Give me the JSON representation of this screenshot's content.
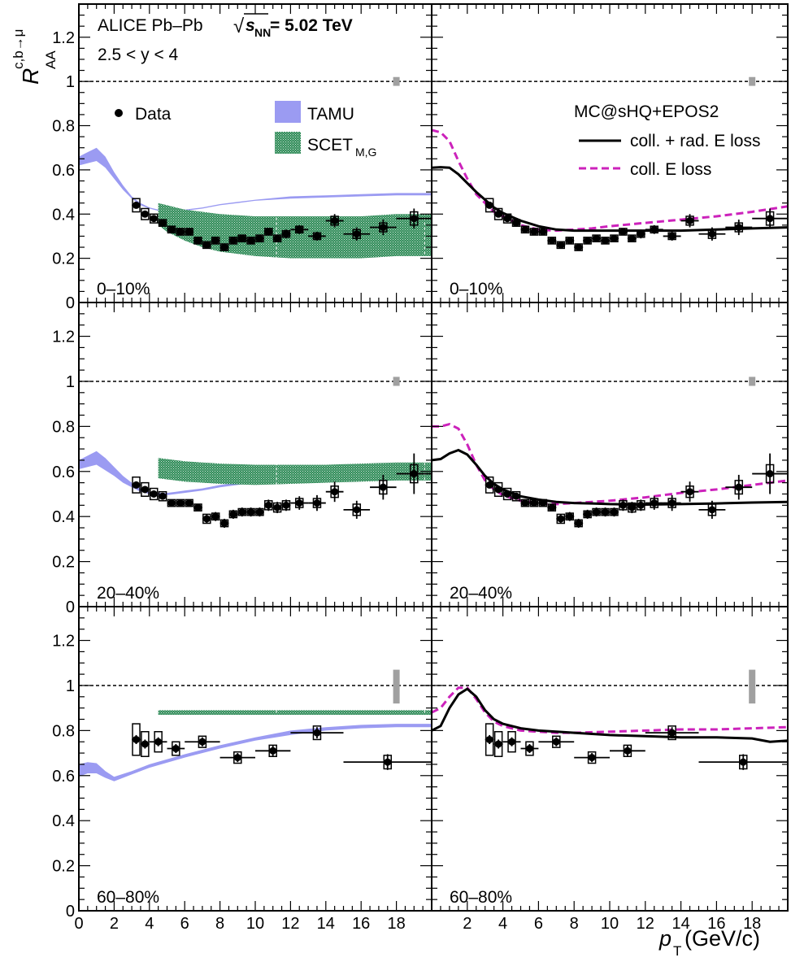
{
  "figure": {
    "experiment_label": "ALICE Pb–Pb",
    "energy_sqrt": "√",
    "energy_s": "s",
    "energy_sub": "NN",
    "energy_value": " = 5.02 TeV",
    "rapidity": "2.5 < y < 4",
    "ylabel_main": "R",
    "ylabel_sub": "AA",
    "ylabel_sup": "c,b→μ",
    "xlabel_main": "p",
    "xlabel_sub": "T",
    "xlabel_unit": " (GeV/c)"
  },
  "legend": {
    "data": "Data",
    "tamu": "TAMU",
    "scet": "SCET",
    "scet_sub": "M,G",
    "mc_title": "MC@sHQ+EPOS2",
    "coll_rad": "coll. + rad. E loss",
    "coll": "coll. E loss"
  },
  "colors": {
    "tamu": "#9b9bf2",
    "scet": "#2f8a58",
    "mc_coll_rad": "#000000",
    "mc_coll": "#cc22bb",
    "norm_unc": "#a0a0a0",
    "data": "#000000"
  },
  "chart_data": {
    "type": "scatter",
    "layout": "3 rows (centrality) × 2 columns (model comparison)",
    "x_range": [
      0,
      20
    ],
    "y_range": [
      0,
      1.35
    ],
    "x_ticks": [
      0,
      2,
      4,
      6,
      8,
      10,
      12,
      14,
      16,
      18
    ],
    "y_ticks": [
      0,
      0.2,
      0.4,
      0.6,
      0.8,
      1,
      1.2
    ],
    "reference_line": 1,
    "columns": [
      "TAMU, SCET_M,G",
      "MC@sHQ+EPOS2"
    ],
    "centralities": [
      {
        "label": "0–10%",
        "norm_unc": [
          0.98,
          1.02
        ],
        "data": {
          "x": [
            3.25,
            3.75,
            4.25,
            4.75,
            5.25,
            5.75,
            6.25,
            6.75,
            7.25,
            7.75,
            8.25,
            8.75,
            9.25,
            9.75,
            10.25,
            10.75,
            11.25,
            11.75,
            12.5,
            13.5,
            14.5,
            15.75,
            17.25,
            19.0
          ],
          "y": [
            0.44,
            0.4,
            0.38,
            0.36,
            0.33,
            0.32,
            0.32,
            0.28,
            0.26,
            0.28,
            0.25,
            0.28,
            0.29,
            0.28,
            0.29,
            0.32,
            0.29,
            0.31,
            0.33,
            0.3,
            0.37,
            0.31,
            0.34,
            0.38
          ],
          "xerr": [
            0.25,
            0.25,
            0.25,
            0.25,
            0.25,
            0.25,
            0.25,
            0.25,
            0.25,
            0.25,
            0.25,
            0.25,
            0.25,
            0.25,
            0.25,
            0.25,
            0.25,
            0.25,
            0.5,
            0.5,
            0.5,
            0.75,
            0.75,
            1.0
          ],
          "yerr": [
            0.015,
            0.015,
            0.015,
            0.015,
            0.015,
            0.015,
            0.015,
            0.015,
            0.015,
            0.015,
            0.015,
            0.015,
            0.015,
            0.015,
            0.015,
            0.015,
            0.015,
            0.02,
            0.02,
            0.02,
            0.03,
            0.03,
            0.035,
            0.045
          ],
          "syst": [
            0.03,
            0.025,
            0.02,
            0.015,
            0.015,
            0.015,
            0.015,
            0.015,
            0.015,
            0.015,
            0.015,
            0.015,
            0.015,
            0.015,
            0.015,
            0.015,
            0.015,
            0.015,
            0.015,
            0.015,
            0.02,
            0.02,
            0.02,
            0.03
          ]
        },
        "tamu": {
          "x": [
            0,
            0.5,
            1,
            1.5,
            2,
            2.5,
            3,
            3.5,
            4,
            4.5,
            5,
            5.5,
            6,
            7,
            8,
            9,
            10,
            12,
            14,
            16,
            18,
            20
          ],
          "low": [
            0.62,
            0.63,
            0.64,
            0.61,
            0.56,
            0.51,
            0.47,
            0.44,
            0.425,
            0.415,
            0.41,
            0.41,
            0.415,
            0.425,
            0.44,
            0.45,
            0.46,
            0.47,
            0.475,
            0.48,
            0.485,
            0.485
          ],
          "high": [
            0.66,
            0.68,
            0.7,
            0.66,
            0.59,
            0.53,
            0.48,
            0.45,
            0.43,
            0.42,
            0.415,
            0.415,
            0.42,
            0.43,
            0.445,
            0.455,
            0.465,
            0.48,
            0.485,
            0.49,
            0.495,
            0.495
          ]
        },
        "scet": {
          "x": [
            4.5,
            5,
            6,
            7,
            8,
            10,
            12,
            14,
            16,
            18,
            20
          ],
          "low": [
            0.35,
            0.32,
            0.28,
            0.25,
            0.23,
            0.21,
            0.2,
            0.2,
            0.2,
            0.21,
            0.21
          ],
          "high": [
            0.45,
            0.44,
            0.42,
            0.41,
            0.4,
            0.39,
            0.39,
            0.39,
            0.39,
            0.4,
            0.4
          ]
        },
        "mc_coll_rad": {
          "x": [
            0,
            0.5,
            1,
            1.5,
            2,
            2.5,
            3,
            3.5,
            4,
            5,
            6,
            7,
            8,
            9,
            10,
            12,
            14,
            16,
            18,
            20
          ],
          "y": [
            0.61,
            0.612,
            0.61,
            0.58,
            0.54,
            0.5,
            0.465,
            0.43,
            0.405,
            0.37,
            0.345,
            0.33,
            0.325,
            0.325,
            0.325,
            0.325,
            0.325,
            0.33,
            0.335,
            0.34
          ]
        },
        "mc_coll": {
          "x": [
            0,
            0.5,
            1,
            1.5,
            2,
            2.5,
            3,
            3.5,
            4,
            5,
            6,
            7,
            8,
            9,
            10,
            12,
            14,
            16,
            18,
            20
          ],
          "y": [
            0.78,
            0.77,
            0.73,
            0.64,
            0.56,
            0.49,
            0.45,
            0.41,
            0.39,
            0.35,
            0.33,
            0.325,
            0.33,
            0.335,
            0.345,
            0.36,
            0.375,
            0.39,
            0.41,
            0.435
          ]
        }
      },
      {
        "label": "20–40%",
        "norm_unc": [
          0.98,
          1.02
        ],
        "data": {
          "x": [
            3.25,
            3.75,
            4.25,
            4.75,
            5.25,
            5.75,
            6.25,
            6.75,
            7.25,
            7.75,
            8.25,
            8.75,
            9.25,
            9.75,
            10.25,
            10.75,
            11.25,
            11.75,
            12.5,
            13.5,
            14.5,
            15.75,
            17.25,
            19.0
          ],
          "y": [
            0.54,
            0.52,
            0.5,
            0.49,
            0.46,
            0.46,
            0.46,
            0.44,
            0.39,
            0.4,
            0.37,
            0.41,
            0.42,
            0.42,
            0.42,
            0.45,
            0.44,
            0.45,
            0.46,
            0.46,
            0.51,
            0.43,
            0.53,
            0.59
          ],
          "xerr": [
            0.25,
            0.25,
            0.25,
            0.25,
            0.25,
            0.25,
            0.25,
            0.25,
            0.25,
            0.25,
            0.25,
            0.25,
            0.25,
            0.25,
            0.25,
            0.25,
            0.25,
            0.25,
            0.5,
            0.5,
            0.5,
            0.75,
            0.75,
            1.0
          ],
          "yerr": [
            0.015,
            0.015,
            0.015,
            0.015,
            0.015,
            0.015,
            0.015,
            0.015,
            0.02,
            0.02,
            0.02,
            0.02,
            0.02,
            0.02,
            0.02,
            0.025,
            0.025,
            0.025,
            0.03,
            0.035,
            0.045,
            0.04,
            0.055,
            0.09
          ],
          "syst": [
            0.035,
            0.03,
            0.025,
            0.02,
            0.015,
            0.015,
            0.015,
            0.015,
            0.02,
            0.015,
            0.015,
            0.015,
            0.015,
            0.015,
            0.015,
            0.02,
            0.02,
            0.02,
            0.02,
            0.02,
            0.025,
            0.025,
            0.03,
            0.04
          ]
        },
        "tamu": {
          "x": [
            0,
            0.5,
            1,
            1.5,
            2,
            2.5,
            3,
            3.5,
            4,
            4.5,
            5,
            5.5,
            6,
            7,
            8,
            9,
            10,
            12,
            14,
            16,
            18,
            20
          ],
          "low": [
            0.61,
            0.62,
            0.63,
            0.605,
            0.58,
            0.55,
            0.53,
            0.51,
            0.5,
            0.495,
            0.495,
            0.5,
            0.505,
            0.515,
            0.53,
            0.54,
            0.55,
            0.57,
            0.58,
            0.59,
            0.595,
            0.595
          ],
          "high": [
            0.65,
            0.67,
            0.69,
            0.66,
            0.62,
            0.58,
            0.55,
            0.525,
            0.51,
            0.505,
            0.505,
            0.51,
            0.515,
            0.525,
            0.54,
            0.55,
            0.56,
            0.58,
            0.59,
            0.6,
            0.605,
            0.605
          ]
        },
        "scet": {
          "x": [
            4.5,
            5,
            6,
            8,
            10,
            12,
            14,
            16,
            18,
            20
          ],
          "low": [
            0.57,
            0.565,
            0.555,
            0.545,
            0.54,
            0.545,
            0.55,
            0.555,
            0.56,
            0.56
          ],
          "high": [
            0.66,
            0.655,
            0.645,
            0.635,
            0.63,
            0.63,
            0.63,
            0.635,
            0.64,
            0.64
          ]
        },
        "mc_coll_rad": {
          "x": [
            0,
            0.5,
            1,
            1.5,
            2,
            2.5,
            3,
            3.5,
            4,
            5,
            6,
            7,
            8,
            9,
            10,
            12,
            14,
            16,
            18,
            20
          ],
          "y": [
            0.65,
            0.655,
            0.68,
            0.695,
            0.675,
            0.63,
            0.58,
            0.545,
            0.52,
            0.49,
            0.475,
            0.465,
            0.46,
            0.458,
            0.455,
            0.453,
            0.455,
            0.458,
            0.462,
            0.465
          ]
        },
        "mc_coll": {
          "x": [
            0,
            0.5,
            1,
            1.5,
            2,
            2.5,
            3,
            3.5,
            4,
            5,
            6,
            7,
            8,
            9,
            10,
            12,
            14,
            16,
            18,
            20
          ],
          "y": [
            0.8,
            0.8,
            0.81,
            0.79,
            0.72,
            0.63,
            0.56,
            0.52,
            0.495,
            0.47,
            0.46,
            0.455,
            0.46,
            0.465,
            0.47,
            0.485,
            0.505,
            0.52,
            0.54,
            0.56
          ]
        }
      },
      {
        "label": "60–80%",
        "norm_unc": [
          0.92,
          1.07
        ],
        "data": {
          "x": [
            3.25,
            3.75,
            4.5,
            5.5,
            7.0,
            9.0,
            11.0,
            13.5,
            17.5
          ],
          "y": [
            0.76,
            0.74,
            0.75,
            0.72,
            0.75,
            0.68,
            0.71,
            0.79,
            0.66
          ],
          "xerr": [
            0.25,
            0.25,
            0.5,
            0.5,
            1.0,
            1.0,
            1.0,
            1.5,
            2.5
          ],
          "yerr": [
            0.02,
            0.02,
            0.02,
            0.02,
            0.02,
            0.02,
            0.025,
            0.025,
            0.035
          ],
          "syst": [
            0.07,
            0.055,
            0.045,
            0.03,
            0.025,
            0.025,
            0.025,
            0.03,
            0.03
          ]
        },
        "tamu": {
          "x": [
            0,
            0.5,
            1,
            1.5,
            2,
            3,
            4,
            6,
            8,
            10,
            12,
            14,
            16,
            18,
            20
          ],
          "low": [
            0.595,
            0.61,
            0.61,
            0.59,
            0.575,
            0.605,
            0.635,
            0.68,
            0.72,
            0.755,
            0.78,
            0.8,
            0.81,
            0.815,
            0.815
          ],
          "high": [
            0.65,
            0.66,
            0.655,
            0.62,
            0.595,
            0.62,
            0.65,
            0.695,
            0.735,
            0.77,
            0.8,
            0.815,
            0.825,
            0.83,
            0.83
          ]
        },
        "scet": {
          "x": [
            4.5,
            6,
            8,
            10,
            12,
            14,
            16,
            18,
            20
          ],
          "low": [
            0.87,
            0.87,
            0.87,
            0.87,
            0.87,
            0.87,
            0.87,
            0.87,
            0.87
          ],
          "high": [
            0.89,
            0.89,
            0.89,
            0.89,
            0.89,
            0.89,
            0.89,
            0.89,
            0.89
          ]
        },
        "mc_coll_rad": {
          "x": [
            0,
            0.5,
            1,
            1.5,
            2,
            2.5,
            3,
            3.5,
            4,
            5,
            6,
            7,
            8,
            10,
            12,
            14,
            16,
            18,
            19,
            20
          ],
          "y": [
            0.8,
            0.82,
            0.9,
            0.96,
            0.985,
            0.95,
            0.89,
            0.85,
            0.83,
            0.81,
            0.8,
            0.795,
            0.79,
            0.78,
            0.775,
            0.77,
            0.77,
            0.765,
            0.75,
            0.755
          ]
        },
        "mc_coll": {
          "x": [
            0,
            0.5,
            1,
            1.5,
            2,
            2.5,
            3,
            3.5,
            4,
            5,
            6,
            7,
            8,
            10,
            12,
            14,
            16,
            18,
            20
          ],
          "y": [
            0.88,
            0.9,
            0.95,
            0.99,
            0.99,
            0.94,
            0.88,
            0.84,
            0.82,
            0.8,
            0.795,
            0.79,
            0.79,
            0.795,
            0.8,
            0.805,
            0.805,
            0.81,
            0.815
          ]
        }
      }
    ]
  }
}
